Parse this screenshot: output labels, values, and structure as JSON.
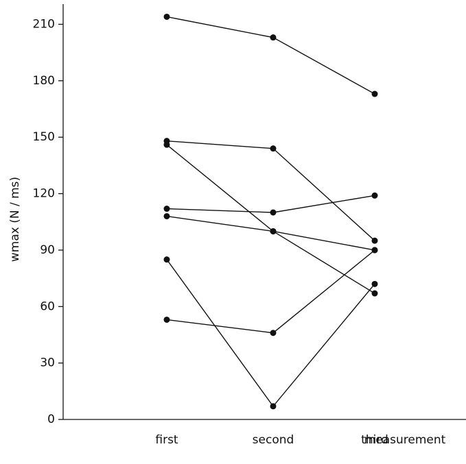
{
  "chart_data": {
    "type": "line",
    "ylabel": "wmax (N / ms)",
    "xlabel": "measurement",
    "categories": [
      "first",
      "second",
      "third"
    ],
    "series": [
      {
        "color": "#111111",
        "values": [
          214,
          203,
          173
        ]
      },
      {
        "color": "#111111",
        "values": [
          148,
          144,
          95
        ]
      },
      {
        "color": "#111111",
        "values": [
          146,
          100,
          67
        ]
      },
      {
        "color": "#111111",
        "values": [
          112,
          110,
          119
        ]
      },
      {
        "color": "#111111",
        "values": [
          108,
          100,
          90
        ]
      },
      {
        "color": "#111111",
        "values": [
          53,
          46,
          90
        ]
      },
      {
        "color": "#111111",
        "values": [
          85,
          7,
          72
        ]
      }
    ],
    "ylim": [
      0,
      220
    ],
    "yticks": [
      0,
      30,
      60,
      90,
      120,
      150,
      180,
      210
    ]
  }
}
